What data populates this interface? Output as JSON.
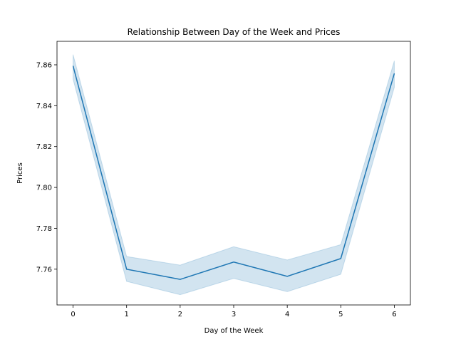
{
  "chart_data": {
    "type": "line",
    "title": "Relationship Between Day of the Week and Prices",
    "xlabel": "Day of the Week",
    "ylabel": "Prices",
    "x": [
      0,
      1,
      2,
      3,
      4,
      5,
      6
    ],
    "series": [
      {
        "values": [
          7.8595,
          7.76,
          7.755,
          7.7635,
          7.7565,
          7.7652,
          7.8558
        ],
        "ci_lower": [
          7.853,
          7.754,
          7.7475,
          7.7555,
          7.749,
          7.7575,
          7.849
        ],
        "ci_upper": [
          7.865,
          7.7662,
          7.762,
          7.771,
          7.7645,
          7.772,
          7.862
        ]
      }
    ],
    "xticks": [
      "0",
      "1",
      "2",
      "3",
      "4",
      "5",
      "6"
    ],
    "yticks": [
      "7.76",
      "7.78",
      "7.80",
      "7.82",
      "7.84",
      "7.86"
    ],
    "ytick_values": [
      7.76,
      7.78,
      7.8,
      7.82,
      7.84,
      7.86
    ],
    "xlim": [
      -0.3,
      6.3
    ],
    "ylim": [
      7.7425,
      7.8715
    ],
    "grid": false,
    "legend": "none",
    "colors": {
      "line": "#1f77b4",
      "band": "#1f77b4"
    }
  }
}
